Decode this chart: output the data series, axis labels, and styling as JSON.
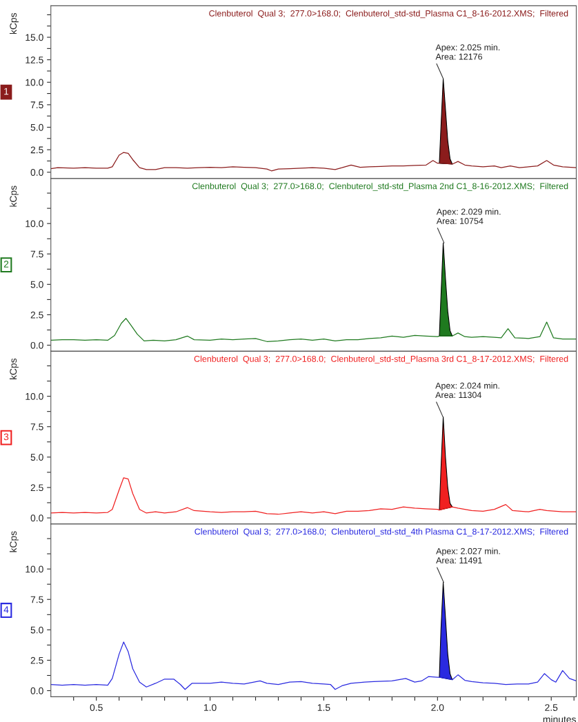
{
  "chart_data": [
    {
      "type": "line",
      "title": "Clenbuterol  Qual 3;  277.0>168.0;  Clenbuterol_std-std_Plasma C1_8-16-2012.XMS;  Filtered",
      "ylabel": "kCps",
      "xlim": [
        0.3,
        2.61
      ],
      "ylim": [
        -0.7,
        18.5
      ],
      "tick_labels": "y",
      "yticks": [
        {
          "value": 0,
          "label": "0.0"
        },
        {
          "value": 1.25,
          "label": null
        },
        {
          "value": 2.5,
          "label": "2.5"
        },
        {
          "value": 3.75,
          "label": null
        },
        {
          "value": 5,
          "label": "5.0"
        },
        {
          "value": 6.25,
          "label": null
        },
        {
          "value": 7.5,
          "label": "7.5"
        },
        {
          "value": 8.75,
          "label": null
        },
        {
          "value": 10,
          "label": "10.0"
        },
        {
          "value": 11.25,
          "label": null
        },
        {
          "value": 12.5,
          "label": "12.5"
        },
        {
          "value": 13.75,
          "label": null
        },
        {
          "value": 15,
          "label": "15.0"
        },
        {
          "value": 16.25,
          "label": null
        },
        {
          "value": 17.5,
          "label": null
        }
      ],
      "annotations": [
        "1",
        {
          "text": "Apex: 2.025 min.\nArea: 12176",
          "x": 2.025,
          "y": 10.4
        }
      ],
      "series": [
        {
          "color": "#8b1c1c",
          "x": [
            0.3,
            0.33,
            0.4,
            0.45,
            0.5,
            0.55,
            0.57,
            0.6,
            0.62,
            0.64,
            0.66,
            0.69,
            0.72,
            0.76,
            0.8,
            0.85,
            0.9,
            0.95,
            1.0,
            1.05,
            1.1,
            1.15,
            1.2,
            1.25,
            1.27,
            1.3,
            1.35,
            1.4,
            1.45,
            1.5,
            1.55,
            1.58,
            1.62,
            1.66,
            1.7,
            1.75,
            1.8,
            1.85,
            1.9,
            1.95,
            1.98,
            2.0,
            2.008,
            2.065,
            2.09,
            2.12,
            2.15,
            2.2,
            2.25,
            2.28,
            2.32,
            2.36,
            2.4,
            2.44,
            2.48,
            2.51,
            2.55,
            2.61
          ],
          "values": [
            0.4,
            0.5,
            0.45,
            0.5,
            0.45,
            0.45,
            0.6,
            1.9,
            2.2,
            2.1,
            1.4,
            0.5,
            0.3,
            0.3,
            0.5,
            0.5,
            0.45,
            0.5,
            0.55,
            0.5,
            0.6,
            0.55,
            0.5,
            0.35,
            0.15,
            0.35,
            0.4,
            0.45,
            0.5,
            0.45,
            0.3,
            0.5,
            0.8,
            0.55,
            0.6,
            0.65,
            0.7,
            0.7,
            0.75,
            0.8,
            1.3,
            1.0,
            1.0,
            0.9,
            1.2,
            0.8,
            0.7,
            0.6,
            0.7,
            0.5,
            0.7,
            0.5,
            0.6,
            0.7,
            1.3,
            0.8,
            0.6,
            0.5
          ]
        },
        {
          "type": "area",
          "color": "#8b1c1c",
          "x": [
            2.008,
            2.015,
            2.025,
            2.035,
            2.045,
            2.055,
            2.065
          ],
          "values": [
            1.0,
            5.0,
            10.4,
            7.0,
            3.5,
            1.5,
            0.9
          ]
        }
      ]
    },
    {
      "type": "line",
      "title": "Clenbuterol  Qual 3;  277.0>168.0;  Clenbuterol_std-std_Plasma 2nd C1_8-16-2012.XMS;  Filtered",
      "ylabel": "kCps",
      "xlim": [
        0.3,
        2.61
      ],
      "ylim": [
        -0.5,
        13.7
      ],
      "tick_labels": "y",
      "yticks": [
        {
          "value": 0,
          "label": "0.0"
        },
        {
          "value": 1.25,
          "label": null
        },
        {
          "value": 2.5,
          "label": "2.5"
        },
        {
          "value": 3.75,
          "label": null
        },
        {
          "value": 5,
          "label": "5.0"
        },
        {
          "value": 6.25,
          "label": null
        },
        {
          "value": 7.5,
          "label": "7.5"
        },
        {
          "value": 8.75,
          "label": null
        },
        {
          "value": 10,
          "label": "10.0"
        },
        {
          "value": 11.25,
          "label": null
        },
        {
          "value": 12.5,
          "label": null
        }
      ],
      "annotations": [
        "2",
        {
          "text": "Apex: 2.029 min.\nArea: 10754",
          "x": 2.029,
          "y": 8.4
        }
      ],
      "series": [
        {
          "color": "#1f7a1f",
          "x": [
            0.3,
            0.35,
            0.4,
            0.45,
            0.5,
            0.55,
            0.58,
            0.61,
            0.63,
            0.65,
            0.68,
            0.71,
            0.75,
            0.8,
            0.85,
            0.9,
            0.93,
            1.0,
            1.05,
            1.1,
            1.15,
            1.2,
            1.25,
            1.3,
            1.35,
            1.4,
            1.45,
            1.5,
            1.55,
            1.6,
            1.65,
            1.7,
            1.75,
            1.8,
            1.85,
            1.9,
            1.95,
            2.0,
            2.008,
            2.065,
            2.09,
            2.12,
            2.15,
            2.2,
            2.25,
            2.28,
            2.31,
            2.34,
            2.4,
            2.45,
            2.48,
            2.51,
            2.55,
            2.61
          ],
          "values": [
            0.4,
            0.45,
            0.45,
            0.4,
            0.45,
            0.4,
            0.8,
            1.8,
            2.2,
            1.7,
            0.9,
            0.35,
            0.4,
            0.35,
            0.45,
            0.75,
            0.45,
            0.4,
            0.5,
            0.45,
            0.5,
            0.55,
            0.3,
            0.35,
            0.45,
            0.5,
            0.4,
            0.5,
            0.35,
            0.45,
            0.45,
            0.55,
            0.6,
            0.75,
            0.65,
            0.8,
            0.75,
            0.7,
            0.75,
            0.75,
            1.0,
            0.7,
            0.65,
            0.7,
            0.65,
            0.6,
            1.35,
            0.6,
            0.55,
            0.7,
            1.9,
            0.6,
            0.5,
            0.5
          ]
        },
        {
          "type": "area",
          "color": "#1f7a1f",
          "x": [
            2.008,
            2.015,
            2.025,
            2.035,
            2.045,
            2.055,
            2.065
          ],
          "values": [
            0.75,
            4.0,
            8.4,
            5.5,
            2.8,
            1.2,
            0.75
          ]
        }
      ]
    },
    {
      "type": "line",
      "title": "Clenbuterol  Qual 3;  277.0>168.0;  Clenbuterol_std-std_Plasma 3rd C1_8-17-2012.XMS;  Filtered",
      "ylabel": "kCps",
      "xlim": [
        0.3,
        2.61
      ],
      "ylim": [
        -0.5,
        13.7
      ],
      "tick_labels": "y",
      "yticks": [
        {
          "value": 0,
          "label": "0.0"
        },
        {
          "value": 1.25,
          "label": null
        },
        {
          "value": 2.5,
          "label": "2.5"
        },
        {
          "value": 3.75,
          "label": null
        },
        {
          "value": 5,
          "label": "5.0"
        },
        {
          "value": 6.25,
          "label": null
        },
        {
          "value": 7.5,
          "label": "7.5"
        },
        {
          "value": 8.75,
          "label": null
        },
        {
          "value": 10,
          "label": "10.0"
        },
        {
          "value": 11.25,
          "label": null
        },
        {
          "value": 12.5,
          "label": null
        }
      ],
      "annotations": [
        "3",
        {
          "text": "Apex: 2.024 min.\nArea: 11304",
          "x": 2.024,
          "y": 8.3
        }
      ],
      "series": [
        {
          "color": "#f02020",
          "x": [
            0.3,
            0.35,
            0.4,
            0.45,
            0.5,
            0.55,
            0.57,
            0.6,
            0.62,
            0.64,
            0.66,
            0.69,
            0.72,
            0.76,
            0.8,
            0.85,
            0.9,
            0.93,
            1.0,
            1.05,
            1.1,
            1.15,
            1.2,
            1.25,
            1.3,
            1.35,
            1.4,
            1.45,
            1.5,
            1.55,
            1.6,
            1.65,
            1.7,
            1.75,
            1.8,
            1.85,
            1.9,
            1.95,
            2.0,
            2.008,
            2.065,
            2.09,
            2.12,
            2.15,
            2.2,
            2.25,
            2.3,
            2.33,
            2.4,
            2.45,
            2.48,
            2.55,
            2.61
          ],
          "values": [
            0.4,
            0.45,
            0.4,
            0.45,
            0.4,
            0.45,
            0.7,
            2.3,
            3.3,
            3.2,
            2.0,
            0.7,
            0.4,
            0.5,
            0.4,
            0.5,
            0.85,
            0.6,
            0.5,
            0.45,
            0.5,
            0.5,
            0.55,
            0.35,
            0.3,
            0.4,
            0.5,
            0.4,
            0.5,
            0.35,
            0.55,
            0.55,
            0.6,
            0.75,
            0.7,
            0.9,
            0.8,
            0.75,
            0.7,
            0.65,
            0.9,
            0.8,
            0.7,
            0.6,
            0.55,
            0.7,
            1.1,
            0.6,
            0.5,
            0.7,
            0.6,
            0.5,
            0.5
          ]
        },
        {
          "type": "area",
          "color": "#f02020",
          "x": [
            2.008,
            2.015,
            2.025,
            2.035,
            2.045,
            2.055,
            2.065
          ],
          "values": [
            0.65,
            4.0,
            8.3,
            5.0,
            2.5,
            1.2,
            0.9
          ]
        }
      ]
    },
    {
      "type": "line",
      "title": "Clenbuterol  Qual 3;  277.0>168.0;  Clenbuterol_std-std_4th Plasma C1_8-17-2012.XMS;  Filtered",
      "ylabel": "kCps",
      "xlabel": "minutes",
      "xlim": [
        0.3,
        2.61
      ],
      "ylim": [
        -0.5,
        13.7
      ],
      "xticks": [
        {
          "value": 0.4,
          "label": null
        },
        {
          "value": 0.5,
          "label": "0.5"
        },
        {
          "value": 0.6,
          "label": null
        },
        {
          "value": 0.7,
          "label": null
        },
        {
          "value": 0.8,
          "label": null
        },
        {
          "value": 0.9,
          "label": null
        },
        {
          "value": 1.0,
          "label": "1.0"
        },
        {
          "value": 1.1,
          "label": null
        },
        {
          "value": 1.2,
          "label": null
        },
        {
          "value": 1.3,
          "label": null
        },
        {
          "value": 1.4,
          "label": null
        },
        {
          "value": 1.5,
          "label": "1.5"
        },
        {
          "value": 1.6,
          "label": null
        },
        {
          "value": 1.7,
          "label": null
        },
        {
          "value": 1.8,
          "label": null
        },
        {
          "value": 1.9,
          "label": null
        },
        {
          "value": 2.0,
          "label": "2.0"
        },
        {
          "value": 2.1,
          "label": null
        },
        {
          "value": 2.2,
          "label": null
        },
        {
          "value": 2.3,
          "label": null
        },
        {
          "value": 2.4,
          "label": null
        },
        {
          "value": 2.5,
          "label": "2.5"
        },
        {
          "value": 2.6,
          "label": null
        }
      ],
      "yticks": [
        {
          "value": 0,
          "label": "0.0"
        },
        {
          "value": 1.25,
          "label": null
        },
        {
          "value": 2.5,
          "label": "2.5"
        },
        {
          "value": 3.75,
          "label": null
        },
        {
          "value": 5,
          "label": "5.0"
        },
        {
          "value": 6.25,
          "label": null
        },
        {
          "value": 7.5,
          "label": "7.5"
        },
        {
          "value": 8.75,
          "label": null
        },
        {
          "value": 10,
          "label": "10.0"
        },
        {
          "value": 11.25,
          "label": null
        },
        {
          "value": 12.5,
          "label": null
        }
      ],
      "annotations": [
        "4",
        {
          "text": "Apex: 2.027 min.\nArea: 11491",
          "x": 2.027,
          "y": 8.9
        }
      ],
      "series": [
        {
          "color": "#2a2ae0",
          "x": [
            0.3,
            0.35,
            0.4,
            0.45,
            0.5,
            0.55,
            0.57,
            0.6,
            0.62,
            0.64,
            0.66,
            0.69,
            0.72,
            0.76,
            0.8,
            0.84,
            0.87,
            0.89,
            0.92,
            0.95,
            1.0,
            1.05,
            1.1,
            1.15,
            1.22,
            1.25,
            1.3,
            1.35,
            1.4,
            1.45,
            1.5,
            1.53,
            1.55,
            1.58,
            1.62,
            1.68,
            1.72,
            1.8,
            1.86,
            1.9,
            1.93,
            1.96,
            2.0,
            2.008,
            2.065,
            2.09,
            2.12,
            2.15,
            2.2,
            2.25,
            2.3,
            2.35,
            2.4,
            2.44,
            2.47,
            2.5,
            2.52,
            2.55,
            2.58,
            2.61
          ],
          "values": [
            0.5,
            0.45,
            0.5,
            0.45,
            0.5,
            0.45,
            1.0,
            3.0,
            4.0,
            3.2,
            1.8,
            0.7,
            0.3,
            0.6,
            0.95,
            0.95,
            0.5,
            0.1,
            0.6,
            0.6,
            0.6,
            0.7,
            0.6,
            0.55,
            0.8,
            0.6,
            0.5,
            0.7,
            0.75,
            0.6,
            0.55,
            0.5,
            0.1,
            0.4,
            0.6,
            0.7,
            0.75,
            0.8,
            1.0,
            0.7,
            0.8,
            1.15,
            1.1,
            1.1,
            0.9,
            1.3,
            0.85,
            0.75,
            0.65,
            0.6,
            0.5,
            0.55,
            0.55,
            0.7,
            1.4,
            0.9,
            0.7,
            1.65,
            1.0,
            0.8
          ]
        },
        {
          "type": "area",
          "color": "#2a2ae0",
          "x": [
            2.008,
            2.015,
            2.025,
            2.035,
            2.045,
            2.055,
            2.065
          ],
          "values": [
            1.1,
            5.0,
            8.9,
            6.0,
            3.0,
            1.4,
            0.9
          ]
        }
      ]
    }
  ]
}
